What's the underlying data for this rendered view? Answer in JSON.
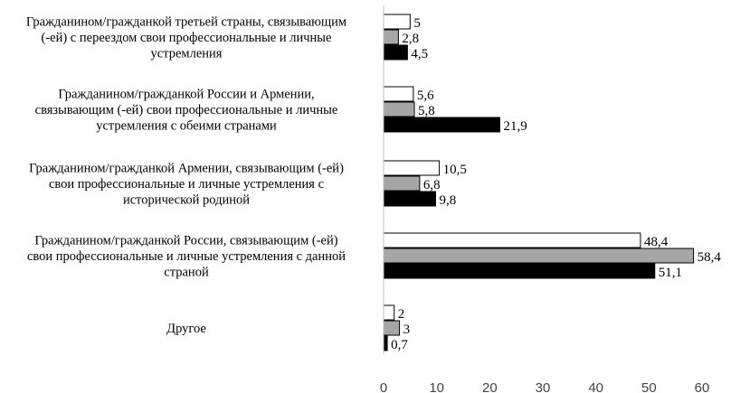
{
  "chart_data": {
    "type": "bar",
    "orientation": "horizontal",
    "categories": [
      {
        "lines": [
          "Гражданином/гражданкой третьей страны, связывающим",
          "(-ей) с переездом свои профессиональные и личные",
          "устремления"
        ]
      },
      {
        "lines": [
          "Гражданином/гражданкой России и Армении,",
          "связывающим (-ей) свои профессиональные и личные",
          "устремления с обеими странами"
        ]
      },
      {
        "lines": [
          "Гражданином/гражданкой Армении, связывающим (-ей)",
          "свои профессиональные и личные устремления с",
          "исторической родиной"
        ]
      },
      {
        "lines": [
          "Гражданином/гражданкой России, связывающим (-ей)",
          "свои профессиональные и личные устремления с данной",
          "страной"
        ]
      },
      {
        "lines": [
          "Другое"
        ]
      }
    ],
    "series": [
      {
        "values": [
          5,
          5.6,
          10.5,
          48.4,
          2
        ],
        "labels": [
          "5",
          "5,6",
          "10,5",
          "48,4",
          "2"
        ],
        "color": "#ffffff"
      },
      {
        "values": [
          2.8,
          5.8,
          6.8,
          58.4,
          3
        ],
        "labels": [
          "2,8",
          "5,8",
          "6,8",
          "58,4",
          "3"
        ],
        "color": "#a6a6a6"
      },
      {
        "values": [
          4.5,
          21.9,
          9.8,
          51.1,
          0.7
        ],
        "labels": [
          "4,5",
          "21,9",
          "9,8",
          "51,1",
          "0,7"
        ],
        "color": "#000000"
      }
    ],
    "xlim": [
      0,
      60
    ],
    "xticks": [
      "0",
      "10",
      "20",
      "30",
      "40",
      "50",
      "60"
    ],
    "grid": false,
    "legend": "none"
  }
}
